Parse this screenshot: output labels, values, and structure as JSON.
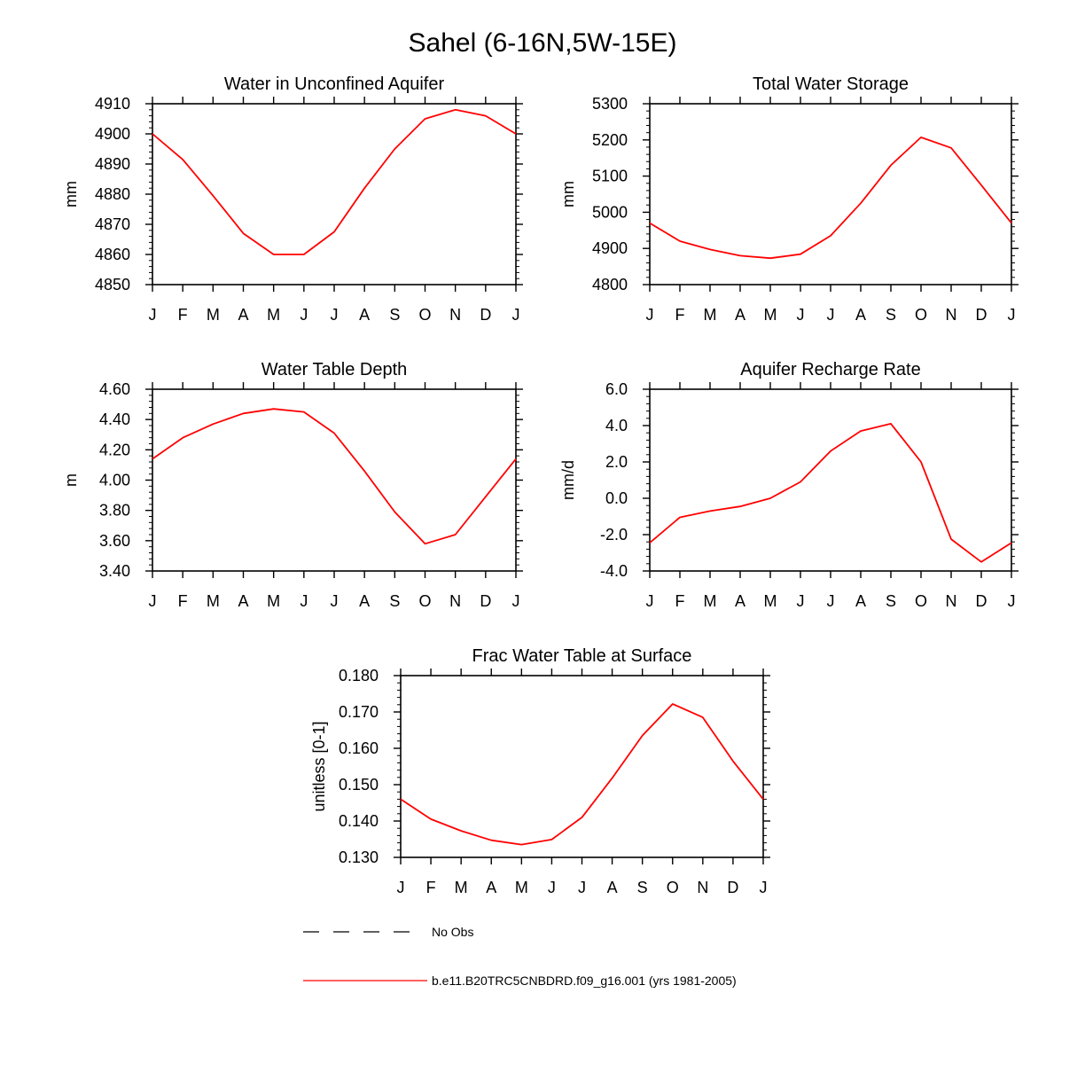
{
  "title": "Sahel (6-16N,5W-15E)",
  "months": [
    "J",
    "F",
    "M",
    "A",
    "M",
    "J",
    "J",
    "A",
    "S",
    "O",
    "N",
    "D",
    "J"
  ],
  "colors": {
    "model": "#ff0000",
    "obs": "#000000",
    "axis": "#000000"
  },
  "legend": {
    "obs_label": "No Obs",
    "model_label": "b.e11.B20TRC5CNBDRD.f09_g16.001 (yrs 1981-2005)"
  },
  "chart_data": [
    {
      "type": "line",
      "title": "Water in Unconfined Aquifer",
      "ylabel": "mm",
      "xlabel": "",
      "ylim": [
        4850,
        4910
      ],
      "yticks": [
        "4850",
        "4860",
        "4870",
        "4880",
        "4890",
        "4900",
        "4910"
      ],
      "categories": [
        "J",
        "F",
        "M",
        "A",
        "M",
        "J",
        "J",
        "A",
        "S",
        "O",
        "N",
        "D",
        "J"
      ],
      "series": [
        {
          "name": "b.e11.B20TRC5CNBDRD.f09_g16.001 (yrs 1981-2005)",
          "values": [
            4900,
            4891.5,
            4879.5,
            4867,
            4860,
            4860,
            4867.5,
            4882,
            4895,
            4905,
            4908,
            4906,
            4900
          ]
        }
      ]
    },
    {
      "type": "line",
      "title": "Total Water Storage",
      "ylabel": "mm",
      "xlabel": "",
      "ylim": [
        4800,
        5300
      ],
      "yticks": [
        "4800",
        "4900",
        "5000",
        "5100",
        "5200",
        "5300"
      ],
      "categories": [
        "J",
        "F",
        "M",
        "A",
        "M",
        "J",
        "J",
        "A",
        "S",
        "O",
        "N",
        "D",
        "J"
      ],
      "series": [
        {
          "name": "b.e11.B20TRC5CNBDRD.f09_g16.001 (yrs 1981-2005)",
          "values": [
            4970,
            4920,
            4897,
            4880,
            4873,
            4884,
            4935,
            5025,
            5130,
            5207,
            5178,
            5075,
            4970
          ]
        }
      ]
    },
    {
      "type": "line",
      "title": "Water Table Depth",
      "ylabel": "m",
      "xlabel": "",
      "ylim": [
        3.4,
        4.6
      ],
      "yticks": [
        "3.40",
        "3.60",
        "3.80",
        "4.00",
        "4.20",
        "4.40",
        "4.60"
      ],
      "categories": [
        "J",
        "F",
        "M",
        "A",
        "M",
        "J",
        "J",
        "A",
        "S",
        "O",
        "N",
        "D",
        "J"
      ],
      "series": [
        {
          "name": "b.e11.B20TRC5CNBDRD.f09_g16.001 (yrs 1981-2005)",
          "values": [
            4.14,
            4.28,
            4.37,
            4.44,
            4.47,
            4.45,
            4.31,
            4.06,
            3.79,
            3.58,
            3.64,
            3.89,
            4.14
          ]
        }
      ]
    },
    {
      "type": "line",
      "title": "Aquifer Recharge Rate",
      "ylabel": "mm/d",
      "xlabel": "",
      "ylim": [
        -4.0,
        6.0
      ],
      "yticks": [
        "-4.0",
        "-2.0",
        "0.0",
        "2.0",
        "4.0",
        "6.0"
      ],
      "categories": [
        "J",
        "F",
        "M",
        "A",
        "M",
        "J",
        "J",
        "A",
        "S",
        "O",
        "N",
        "D",
        "J"
      ],
      "series": [
        {
          "name": "b.e11.B20TRC5CNBDRD.f09_g16.001 (yrs 1981-2005)",
          "values": [
            -2.45,
            -1.05,
            -0.7,
            -0.45,
            0.0,
            0.9,
            2.6,
            3.7,
            4.1,
            2.0,
            -2.25,
            -3.5,
            -2.45
          ]
        }
      ]
    },
    {
      "type": "line",
      "title": "Frac Water Table at Surface",
      "ylabel": "unitless [0-1]",
      "xlabel": "",
      "ylim": [
        0.13,
        0.18
      ],
      "yticks": [
        "0.130",
        "0.140",
        "0.150",
        "0.160",
        "0.170",
        "0.180"
      ],
      "categories": [
        "J",
        "F",
        "M",
        "A",
        "M",
        "J",
        "J",
        "A",
        "S",
        "O",
        "N",
        "D",
        "J"
      ],
      "series": [
        {
          "name": "b.e11.B20TRC5CNBDRD.f09_g16.001 (yrs 1981-2005)",
          "values": [
            0.146,
            0.1405,
            0.1373,
            0.1347,
            0.1335,
            0.1349,
            0.141,
            0.1518,
            0.1635,
            0.1722,
            0.1685,
            0.1565,
            0.146
          ]
        }
      ]
    }
  ]
}
